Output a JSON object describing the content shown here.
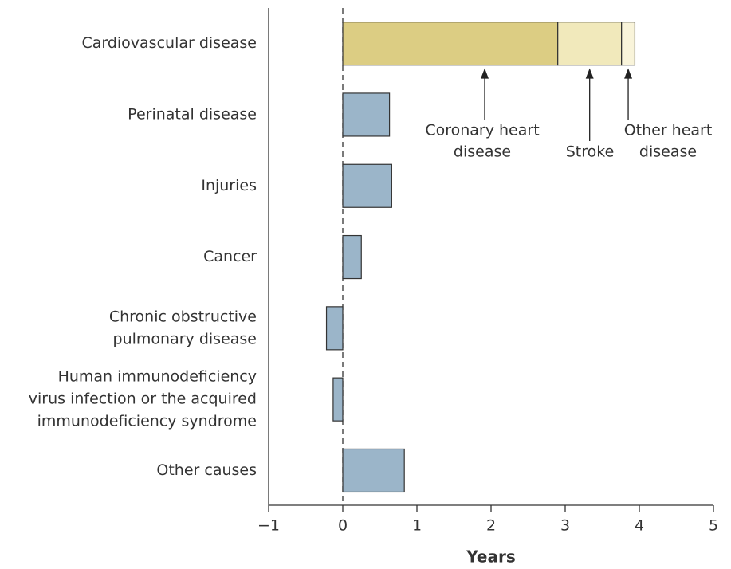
{
  "chart_data": {
    "type": "stacked-barh",
    "categories": [
      [
        "Cardiovascular disease"
      ],
      [
        "Perinatal disease"
      ],
      [
        "Injuries"
      ],
      [
        "Cancer"
      ],
      [
        "Chronic obstructive",
        "pulmonary disease"
      ],
      [
        "Human immunodeficiency",
        "virus infection or the acquired",
        "immunodeficiency syndrome"
      ],
      [
        "Other causes"
      ]
    ],
    "series": [
      {
        "color": "#dccd83",
        "values": [
          2.9,
          null,
          null,
          null,
          null,
          null,
          null
        ]
      },
      {
        "color": "#f1e9bb",
        "values": [
          0.86,
          null,
          null,
          null,
          null,
          null,
          null
        ]
      },
      {
        "color": "#f9f4da",
        "values": [
          0.18,
          null,
          null,
          null,
          null,
          null,
          null
        ]
      },
      {
        "color": "#9bb5c9",
        "values": [
          null,
          0.63,
          0.66,
          0.25,
          -0.22,
          -0.13,
          0.83
        ]
      }
    ],
    "annotations": [
      {
        "series": 0,
        "lines": [
          "Coronary heart",
          "disease"
        ]
      },
      {
        "series": 1,
        "lines": [
          "Stroke"
        ]
      },
      {
        "series": 2,
        "lines": [
          "Other heart",
          "disease"
        ]
      }
    ],
    "xlabel": "Years",
    "xlim": [
      -1,
      5
    ],
    "xticks": [
      {
        "value": -1,
        "label": "−1"
      },
      0,
      1,
      2,
      3,
      4,
      5
    ],
    "zero_line": true
  }
}
